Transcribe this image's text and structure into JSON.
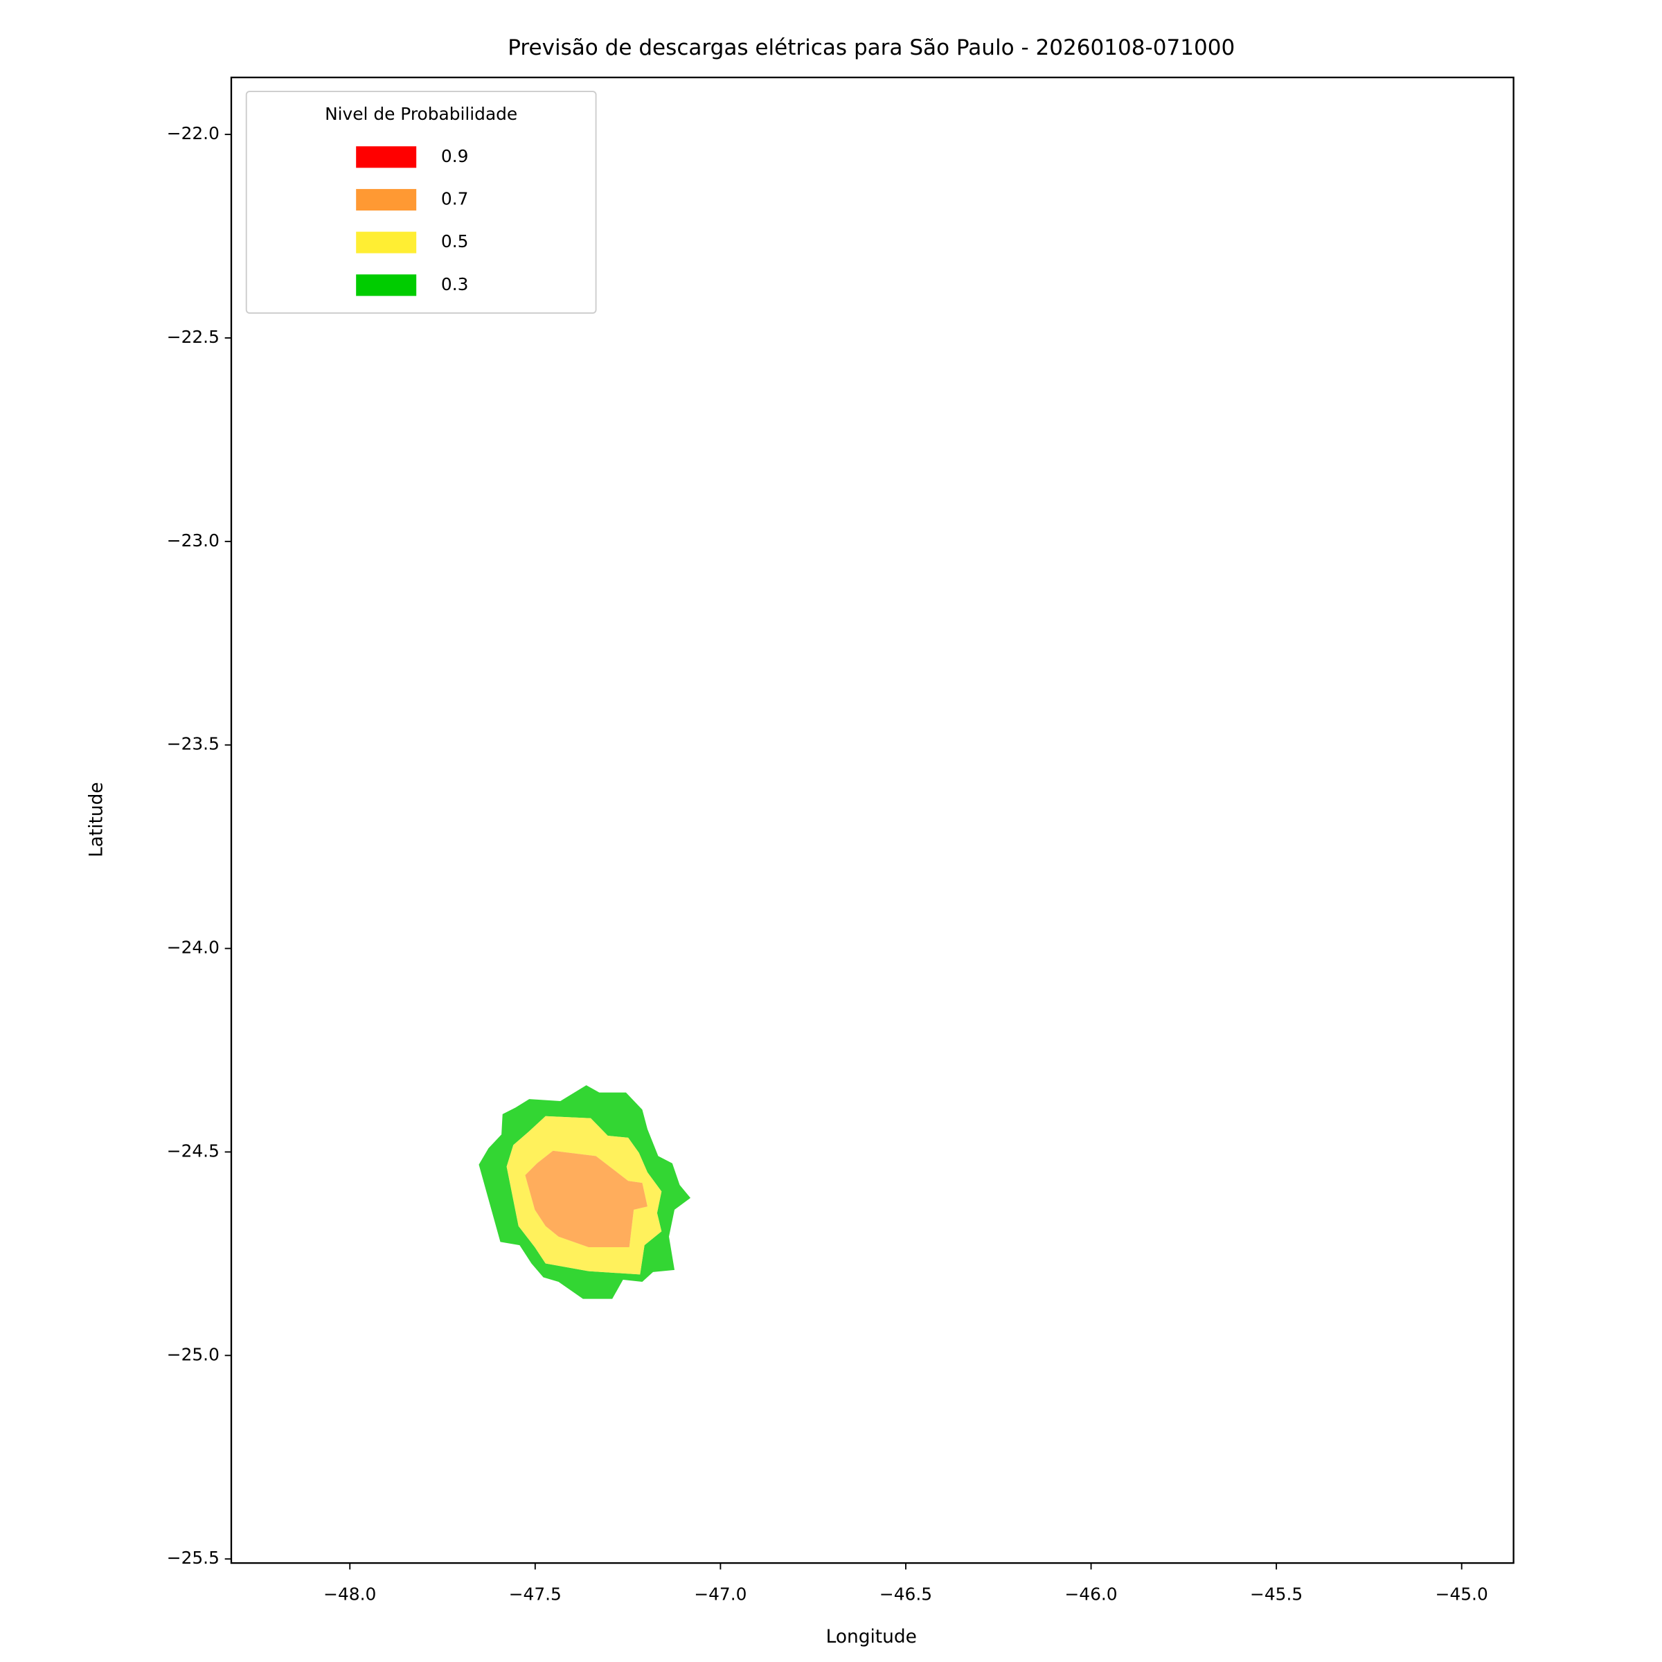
{
  "chart_data": {
    "type": "contour",
    "title": "Previsão de descargas elétricas para São Paulo - 20260108-071000",
    "xlabel": "Longitude",
    "ylabel": "Latitude",
    "xlim": [
      -48.32,
      -44.86
    ],
    "ylim": [
      -25.51,
      -21.86
    ],
    "xticks": [
      {
        "value": -48.0,
        "label": "−48.0"
      },
      {
        "value": -47.5,
        "label": "−47.5"
      },
      {
        "value": -47.0,
        "label": "−47.0"
      },
      {
        "value": -46.5,
        "label": "−46.5"
      },
      {
        "value": -46.0,
        "label": "−46.0"
      },
      {
        "value": -45.5,
        "label": "−45.5"
      },
      {
        "value": -45.0,
        "label": "−45.0"
      }
    ],
    "yticks": [
      {
        "value": -22.0,
        "label": "−22.0"
      },
      {
        "value": -22.5,
        "label": "−22.5"
      },
      {
        "value": -23.0,
        "label": "−23.0"
      },
      {
        "value": -23.5,
        "label": "−23.5"
      },
      {
        "value": -24.0,
        "label": "−24.0"
      },
      {
        "value": -24.5,
        "label": "−24.5"
      },
      {
        "value": -25.0,
        "label": "−25.0"
      },
      {
        "value": -25.5,
        "label": "−25.5"
      }
    ],
    "alpha": 0.8,
    "legend_title": "Nivel de Probabilidade",
    "legend_loc": "upper left",
    "series": [
      {
        "name": "0.9",
        "color": "#ff0000"
      },
      {
        "name": "0.7",
        "color": "#ff9933",
        "x": [
          -47.527,
          -47.495,
          -47.452,
          -47.336,
          -47.249,
          -47.211,
          -47.197,
          -47.234,
          -47.246,
          -47.356,
          -47.437,
          -47.472,
          -47.501
        ],
        "y": [
          -24.557,
          -24.528,
          -24.497,
          -24.51,
          -24.571,
          -24.576,
          -24.634,
          -24.642,
          -24.734,
          -24.734,
          -24.708,
          -24.682,
          -24.642
        ]
      },
      {
        "name": "0.5",
        "color": "#ffee33",
        "x": [
          -47.577,
          -47.559,
          -47.516,
          -47.472,
          -47.35,
          -47.304,
          -47.249,
          -47.22,
          -47.197,
          -47.159,
          -47.171,
          -47.159,
          -47.205,
          -47.217,
          -47.356,
          -47.472,
          -47.501,
          -47.545
        ],
        "y": [
          -24.536,
          -24.483,
          -24.449,
          -24.412,
          -24.417,
          -24.46,
          -24.465,
          -24.502,
          -24.55,
          -24.597,
          -24.65,
          -24.695,
          -24.729,
          -24.801,
          -24.793,
          -24.774,
          -24.734,
          -24.682
        ]
      },
      {
        "name": "0.3",
        "color": "#00cc00",
        "x": [
          -47.652,
          -47.626,
          -47.591,
          -47.588,
          -47.553,
          -47.516,
          -47.432,
          -47.362,
          -47.327,
          -47.255,
          -47.211,
          -47.197,
          -47.168,
          -47.13,
          -47.11,
          -47.081,
          -47.124,
          -47.139,
          -47.124,
          -47.182,
          -47.211,
          -47.263,
          -47.292,
          -47.371,
          -47.437,
          -47.478,
          -47.51,
          -47.542,
          -47.594
        ],
        "y": [
          -24.531,
          -24.491,
          -24.457,
          -24.407,
          -24.391,
          -24.37,
          -24.375,
          -24.336,
          -24.354,
          -24.354,
          -24.396,
          -24.444,
          -24.51,
          -24.528,
          -24.581,
          -24.613,
          -24.642,
          -24.708,
          -24.79,
          -24.795,
          -24.819,
          -24.814,
          -24.861,
          -24.861,
          -24.819,
          -24.808,
          -24.774,
          -24.729,
          -24.721
        ]
      }
    ]
  }
}
